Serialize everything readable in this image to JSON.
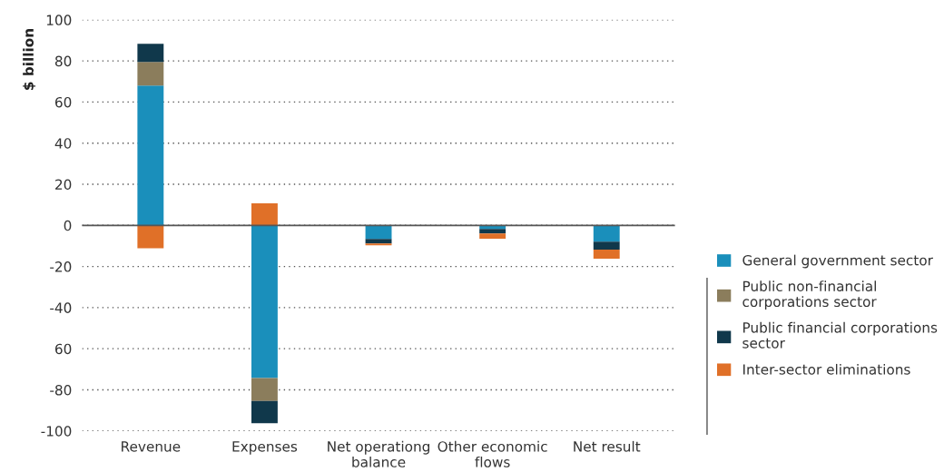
{
  "chart_data": {
    "type": "bar",
    "stacked": true,
    "ylabel": "$ billion",
    "categories": [
      "Revenue",
      "Expenses",
      "Net operationg\nbalance",
      "Other economic\nflows",
      "Net result"
    ],
    "series": [
      {
        "name": "General government sector",
        "color": "#1a8fbb",
        "values": [
          68,
          -74.3,
          -6.6,
          -1.7,
          -7.9
        ]
      },
      {
        "name": "Public non-financial\ncorporations sector",
        "color": "#8b7d5c",
        "values": [
          11.5,
          -11.1,
          0,
          0,
          0
        ]
      },
      {
        "name": "Public financial corporations\nsector",
        "color": "#10384b",
        "values": [
          8.8,
          -10.8,
          -2.2,
          -2.2,
          -3.9
        ]
      },
      {
        "name": "Inter-sector eliminations",
        "color": "#e07028",
        "values": [
          -11.1,
          10.7,
          -0.9,
          -2.6,
          -4.4
        ]
      }
    ],
    "ylim": [
      -100,
      100
    ],
    "yticks": [
      100,
      80,
      60,
      40,
      20,
      0,
      -20,
      -40,
      {
        "value": -60,
        "label": "60"
      },
      -80,
      -100
    ],
    "grid": "y",
    "legend": "right"
  }
}
